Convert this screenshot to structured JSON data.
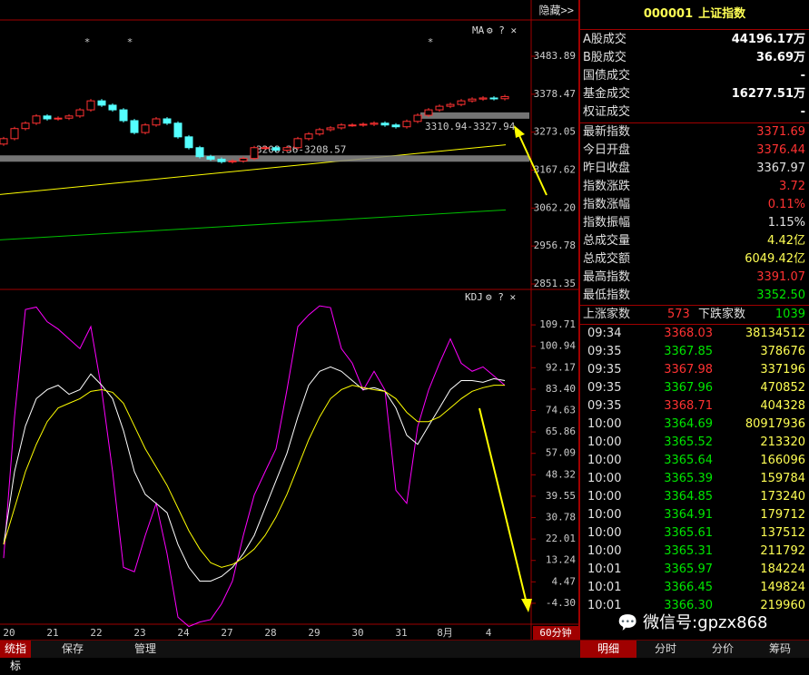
{
  "top_bar": {
    "hide_button": "隐藏>>"
  },
  "chart_data": [
    {
      "type": "candlestick",
      "title": "MA",
      "opens": [
        3240,
        3255,
        3283,
        3298,
        3318,
        3310,
        3312,
        3318,
        3335,
        3360,
        3348,
        3335,
        3305,
        3272,
        3293,
        3310,
        3298,
        3260,
        3230,
        3205,
        3198,
        3191,
        3193,
        3200,
        3230,
        3230,
        3223,
        3230,
        3255,
        3268,
        3280,
        3285,
        3293,
        3293,
        3295,
        3298,
        3293,
        3288,
        3303,
        3320,
        3335,
        3345,
        3350,
        3360,
        3365,
        3368,
        3366
      ],
      "highs": [
        3260,
        3288,
        3303,
        3323,
        3323,
        3317,
        3323,
        3340,
        3365,
        3365,
        3353,
        3340,
        3310,
        3298,
        3315,
        3315,
        3303,
        3265,
        3235,
        3210,
        3203,
        3198,
        3205,
        3235,
        3235,
        3235,
        3235,
        3260,
        3273,
        3285,
        3290,
        3298,
        3298,
        3300,
        3303,
        3303,
        3298,
        3308,
        3325,
        3340,
        3350,
        3355,
        3365,
        3370,
        3373,
        3373,
        3377
      ],
      "lows": [
        3235,
        3250,
        3278,
        3293,
        3305,
        3305,
        3307,
        3313,
        3330,
        3343,
        3330,
        3300,
        3267,
        3267,
        3288,
        3293,
        3255,
        3225,
        3200,
        3193,
        3186,
        3186,
        3188,
        3195,
        3225,
        3218,
        3218,
        3225,
        3250,
        3263,
        3275,
        3280,
        3288,
        3288,
        3290,
        3288,
        3283,
        3283,
        3298,
        3315,
        3330,
        3340,
        3345,
        3355,
        3360,
        3361,
        3361
      ],
      "closes": [
        3255,
        3283,
        3298,
        3318,
        3310,
        3312,
        3318,
        3335,
        3360,
        3348,
        3335,
        3305,
        3272,
        3293,
        3310,
        3298,
        3260,
        3230,
        3205,
        3198,
        3191,
        3193,
        3200,
        3230,
        3230,
        3223,
        3230,
        3255,
        3268,
        3280,
        3285,
        3293,
        3293,
        3295,
        3298,
        3293,
        3288,
        3303,
        3320,
        3335,
        3345,
        3350,
        3360,
        3365,
        3368,
        3366,
        3372
      ],
      "up_color": "#ff3232",
      "down_color": "#54ffff",
      "ma_lines": [
        {
          "color": "#ffff00",
          "values": [
            3100,
            3238
          ]
        },
        {
          "color": "#00c000",
          "values": [
            2974,
            3057
          ]
        }
      ],
      "bands": [
        {
          "label": "3310.94-3327.94",
          "low": 3310.94,
          "high": 3327.94
        },
        {
          "label": "3208.36-3208.57",
          "low": 3208.36,
          "high": 3208.57
        }
      ],
      "ylim": [
        2838.75,
        3584.7
      ],
      "yticks": [
        3483.89,
        3378.47,
        3273.05,
        3167.62,
        {
          "value": 3062.2,
          "label": "3062.20"
        },
        2956.78,
        2851.35
      ]
    },
    {
      "type": "line",
      "title": "KDJ",
      "series": [
        {
          "color": "#ff00ff",
          "values": [
            14.2,
            72,
            116,
            117,
            111,
            108,
            104,
            100,
            109,
            83,
            49.6,
            10.4,
            8.6,
            23.5,
            36.6,
            16,
            -10,
            -13.8,
            -12,
            -11,
            -4.5,
            4.8,
            23.5,
            40,
            49.6,
            59,
            83,
            109,
            113.8,
            117.5,
            116.8,
            100,
            94,
            83,
            90.7,
            83,
            42,
            36.6,
            68,
            83,
            94,
            104,
            94,
            90.7,
            92.5,
            88.8,
            85
          ]
        },
        {
          "color": "#ffffff",
          "values": [
            19.8,
            49.6,
            68.3,
            79.5,
            83.2,
            85,
            81.3,
            83.2,
            89.6,
            85,
            79.5,
            66.4,
            49.6,
            40.3,
            36.6,
            32.8,
            19.8,
            10.4,
            4.8,
            4.8,
            6.7,
            10.4,
            16,
            23.5,
            34.7,
            45.9,
            57.1,
            72,
            85,
            90.7,
            92.5,
            90.7,
            86.9,
            83.2,
            84,
            82.5,
            75.7,
            64.5,
            60.8,
            68.3,
            75.7,
            83.2,
            86.9,
            86.9,
            86.2,
            87.7,
            86.9
          ]
        },
        {
          "color": "#ffff00",
          "values": [
            19.8,
            34.7,
            49.6,
            60.8,
            70.1,
            75.7,
            77.6,
            79.5,
            82.5,
            83.2,
            82.1,
            77.6,
            68.3,
            59,
            51.5,
            44,
            34.7,
            25.4,
            17.9,
            12.3,
            10.4,
            11.6,
            14.2,
            17.9,
            23.5,
            31,
            40.3,
            51.5,
            62.7,
            72,
            79.5,
            83.2,
            85,
            84,
            83.2,
            82.5,
            79.5,
            73.9,
            70.1,
            70.1,
            72,
            75.7,
            79.5,
            82.5,
            84,
            85,
            85
          ]
        }
      ],
      "ylim": [
        -12.87,
        124.24
      ],
      "yticks": [
        109.71,
        100.94,
        92.17,
        {
          "value": 83.4,
          "label": "83.40"
        },
        74.63,
        65.86,
        57.09,
        48.32,
        39.55,
        30.78,
        22.01,
        13.24,
        4.47,
        {
          "value": -4.3,
          "label": "-4.30"
        }
      ]
    }
  ],
  "x_axis": {
    "labels": [
      "20",
      "21",
      "22",
      "23",
      "24",
      "27",
      "28",
      "29",
      "30",
      "31",
      "8月",
      "4"
    ],
    "period": "60分钟"
  },
  "quote_panel": {
    "code": "000001",
    "name": "上证指数",
    "volume_rows": [
      {
        "label": "A股成交",
        "value": "44196.17万"
      },
      {
        "label": "B股成交",
        "value": "36.69万"
      },
      {
        "label": "国债成交",
        "value": "-"
      },
      {
        "label": "基金成交",
        "value": "16277.51万"
      },
      {
        "label": "权证成交",
        "value": "-"
      }
    ],
    "index_rows": [
      {
        "label": "最新指数",
        "value": "3371.69",
        "color": "#ff3232"
      },
      {
        "label": "今日开盘",
        "value": "3376.44",
        "color": "#ff3232"
      },
      {
        "label": "昨日收盘",
        "value": "3367.97",
        "color": "#e0e0e0"
      },
      {
        "label": "指数涨跌",
        "value": "3.72",
        "color": "#ff3232"
      },
      {
        "label": "指数涨幅",
        "value": "0.11%",
        "color": "#ff3232"
      },
      {
        "label": "指数振幅",
        "value": "1.15%",
        "color": "#e0e0e0"
      },
      {
        "label": "总成交量",
        "value": "4.42亿",
        "color": "#ffff54"
      },
      {
        "label": "总成交额",
        "value": "6049.42亿",
        "color": "#ffff54"
      },
      {
        "label": "最高指数",
        "value": "3391.07",
        "color": "#ff3232"
      },
      {
        "label": "最低指数",
        "value": "3352.50",
        "color": "#00e600"
      }
    ],
    "breadth": {
      "up_label": "上涨家数",
      "up": "573",
      "down_label": "下跌家数",
      "down": "1039"
    },
    "ticks": [
      {
        "time": "09:34",
        "price": "3368.03",
        "volume": "38134512",
        "color": "#ff3232"
      },
      {
        "time": "09:35",
        "price": "3367.85",
        "volume": "378676",
        "color": "#00e600"
      },
      {
        "time": "09:35",
        "price": "3367.98",
        "volume": "337196",
        "color": "#ff3232"
      },
      {
        "time": "09:35",
        "price": "3367.96",
        "volume": "470852",
        "color": "#00e600"
      },
      {
        "time": "09:35",
        "price": "3368.71",
        "volume": "404328",
        "color": "#ff3232"
      },
      {
        "time": "10:00",
        "price": "3364.69",
        "volume": "80917936",
        "color": "#00e600"
      },
      {
        "time": "10:00",
        "price": "3365.52",
        "volume": "213320",
        "color": "#00e600"
      },
      {
        "time": "10:00",
        "price": "3365.64",
        "volume": "166096",
        "color": "#00e600"
      },
      {
        "time": "10:00",
        "price": "3365.39",
        "volume": "159784",
        "color": "#00e600"
      },
      {
        "time": "10:00",
        "price": "3364.85",
        "volume": "173240",
        "color": "#00e600"
      },
      {
        "time": "10:00",
        "price": "3364.91",
        "volume": "179712",
        "color": "#00e600"
      },
      {
        "time": "10:00",
        "price": "3365.61",
        "volume": "137512",
        "color": "#00e600"
      },
      {
        "time": "10:00",
        "price": "3365.31",
        "volume": "211792",
        "color": "#00e600"
      },
      {
        "time": "10:01",
        "price": "3365.97",
        "volume": "184224",
        "color": "#00e600"
      },
      {
        "time": "10:01",
        "price": "3366.45",
        "volume": "149824",
        "color": "#00e600"
      },
      {
        "time": "10:01",
        "price": "3366.30",
        "volume": "219960",
        "color": "#00e600"
      }
    ]
  },
  "bottom_tabs": {
    "left": [
      "统指标",
      "保存",
      "管理"
    ],
    "right": [
      "明细",
      "分时",
      "分价",
      "筹码"
    ]
  },
  "watermark": "微信号:gpzx868"
}
